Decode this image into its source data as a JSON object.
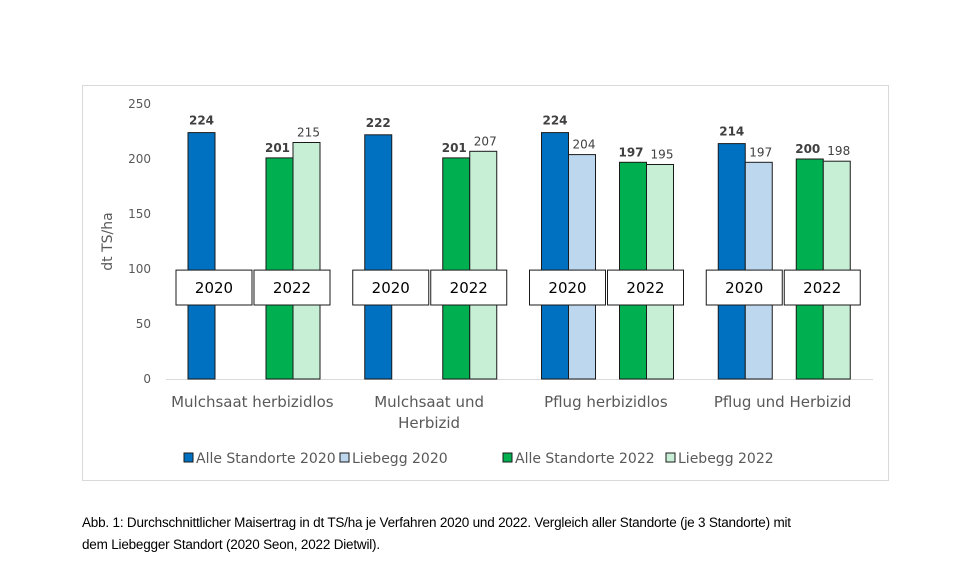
{
  "chart_data": {
    "type": "bar",
    "title": "",
    "xlabel": "",
    "ylabel": "dt TS/ha",
    "ylim": [
      0,
      250
    ],
    "yticks": [
      0,
      50,
      100,
      150,
      200,
      250
    ],
    "grid": false,
    "legend_position": "bottom",
    "categories": [
      "Mulchsaat herbizidlos",
      "Mulchsaat und Herbizid",
      "Pflug herbizidlos",
      "Pflug und Herbizid"
    ],
    "category_lines": [
      [
        "Mulchsaat herbizidlos"
      ],
      [
        "Mulchsaat und",
        "Herbizid"
      ],
      [
        "Pflug herbizidlos"
      ],
      [
        "Pflug und Herbizid"
      ]
    ],
    "series": [
      {
        "name": "Alle Standorte 2020",
        "color": "#0070c0",
        "label_bold": true,
        "values": [
          224,
          222,
          224,
          214
        ]
      },
      {
        "name": "Liebegg 2020",
        "color": "#bdd7ee",
        "label_bold": false,
        "values": [
          null,
          null,
          204,
          197
        ]
      },
      {
        "name": "Alle Standorte 2022",
        "color": "#00b050",
        "label_bold": true,
        "values": [
          201,
          201,
          197,
          200
        ]
      },
      {
        "name": "Liebegg 2022",
        "color": "#c6efd5",
        "label_bold": false,
        "values": [
          215,
          207,
          195,
          198
        ]
      }
    ],
    "year_boxes": [
      "2020",
      "2022"
    ],
    "annotations": [
      "2020",
      "2022"
    ]
  },
  "caption": {
    "line1": "Abb. 1: Durchschnittlicher Maisertrag in dt TS/ha je Verfahren 2020 und 2022. Vergleich aller Standorte (je 3 Standorte) mit",
    "line2": "dem Liebegger Standort (2020 Seon, 2022 Dietwil)."
  }
}
